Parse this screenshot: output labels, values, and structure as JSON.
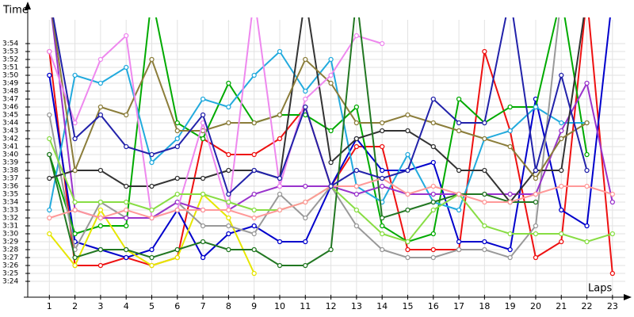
{
  "chart_data": {
    "type": "line",
    "y_label": "Time",
    "x_label": "Laps",
    "x": [
      1,
      2,
      3,
      4,
      5,
      6,
      7,
      8,
      9,
      10,
      11,
      12,
      13,
      14,
      15,
      16,
      17,
      18,
      19,
      20,
      21,
      22,
      23
    ],
    "xlim": [
      0,
      23.5
    ],
    "xticks": [
      1,
      2,
      3,
      4,
      5,
      6,
      7,
      8,
      9,
      10,
      11,
      12,
      13,
      14,
      15,
      16,
      17,
      18,
      19,
      20,
      21,
      22,
      23
    ],
    "ylim": [
      202,
      237
    ],
    "yticks": [
      {
        "value": 204,
        "label": "3:24"
      },
      {
        "value": 205,
        "label": "3:25"
      },
      {
        "value": 206,
        "label": "3:26"
      },
      {
        "value": 207,
        "label": "3:27"
      },
      {
        "value": 208,
        "label": "3:28"
      },
      {
        "value": 209,
        "label": "3:29"
      },
      {
        "value": 210,
        "label": "3:30"
      },
      {
        "value": 211,
        "label": "3:31"
      },
      {
        "value": 212,
        "label": "3:32"
      },
      {
        "value": 213,
        "label": "3:33"
      },
      {
        "value": 214,
        "label": "3:34"
      },
      {
        "value": 215,
        "label": "3:35"
      },
      {
        "value": 216,
        "label": "3:36"
      },
      {
        "value": 217,
        "label": "3:37"
      },
      {
        "value": 218,
        "label": "3:38"
      },
      {
        "value": 219,
        "label": "3:39"
      },
      {
        "value": 220,
        "label": "3:40"
      },
      {
        "value": 221,
        "label": "3:41"
      },
      {
        "value": 222,
        "label": "3:42"
      },
      {
        "value": 223,
        "label": "3:43"
      },
      {
        "value": 224,
        "label": "3:44"
      },
      {
        "value": 225,
        "label": "3:45"
      },
      {
        "value": 226,
        "label": "3:46"
      },
      {
        "value": 227,
        "label": "3:47"
      },
      {
        "value": 228,
        "label": "3:48"
      },
      {
        "value": 229,
        "label": "3:49"
      },
      {
        "value": 230,
        "label": "3:50"
      },
      {
        "value": 231,
        "label": "3:51"
      },
      {
        "value": 232,
        "label": "3:52"
      },
      {
        "value": 233,
        "label": "3:53"
      },
      {
        "value": 234,
        "label": "3:54"
      }
    ],
    "grid": true,
    "series": [
      {
        "color": "#ee1111",
        "values": [
          233,
          206,
          206,
          207,
          206,
          207,
          222,
          220,
          220,
          222,
          226,
          216,
          221,
          221,
          208,
          208,
          208,
          233,
          223,
          207,
          209,
          240,
          205
        ]
      },
      {
        "color": "#0000cc",
        "values": [
          230,
          209,
          208,
          207,
          208,
          213,
          207,
          210,
          211,
          209,
          209,
          216,
          222,
          218,
          218,
          219,
          209,
          209,
          208,
          227,
          213,
          211,
          240
        ]
      },
      {
        "color": "#00aa00",
        "values": [
          220,
          210,
          211,
          211,
          240,
          224,
          222,
          229,
          224,
          225,
          225,
          223,
          226,
          211,
          209,
          210,
          227,
          224,
          226,
          226,
          240,
          220,
          null
        ]
      },
      {
        "color": "#e6e600",
        "values": [
          210,
          206,
          213,
          208,
          206,
          207,
          215,
          212,
          205,
          null,
          null,
          null,
          null,
          null,
          null,
          null,
          null,
          null,
          null,
          null,
          null,
          null,
          null
        ]
      },
      {
        "color": "#22aadd",
        "values": [
          213,
          230,
          229,
          231,
          219,
          222,
          227,
          226,
          230,
          233,
          228,
          232,
          216,
          214,
          220,
          214,
          213,
          222,
          223,
          226,
          224,
          224,
          null
        ]
      },
      {
        "color": "#999999",
        "values": [
          225,
          208,
          214,
          212,
          212,
          214,
          211,
          211,
          210,
          215,
          212,
          216,
          211,
          208,
          207,
          207,
          208,
          208,
          207,
          211,
          240,
          null,
          null
        ]
      },
      {
        "color": "#9933cc",
        "values": [
          240,
          213,
          212,
          212,
          212,
          214,
          213,
          213,
          215,
          216,
          216,
          216,
          215,
          216,
          215,
          215,
          215,
          215,
          215,
          215,
          223,
          229,
          214
        ]
      },
      {
        "color": "#333333",
        "values": [
          217,
          218,
          218,
          216,
          216,
          217,
          217,
          218,
          218,
          217,
          240,
          219,
          222,
          223,
          223,
          221,
          218,
          218,
          214,
          218,
          218,
          240,
          null
        ]
      },
      {
        "color": "#8b7d3a",
        "values": [
          240,
          218,
          226,
          225,
          232,
          223,
          223,
          224,
          224,
          225,
          232,
          229,
          224,
          224,
          225,
          224,
          223,
          222,
          221,
          217,
          222,
          224,
          null
        ]
      },
      {
        "color": "#ee88ee",
        "values": [
          233,
          224,
          232,
          235,
          212,
          213,
          224,
          213,
          240,
          216,
          227,
          230,
          235,
          234,
          null,
          null,
          null,
          null,
          null,
          null,
          null,
          null,
          null
        ]
      },
      {
        "color": "#227722",
        "values": [
          220,
          207,
          208,
          208,
          207,
          208,
          209,
          208,
          208,
          206,
          206,
          208,
          240,
          212,
          213,
          214,
          215,
          215,
          214,
          214,
          null,
          null,
          null
        ]
      },
      {
        "color": "#88dd44",
        "values": [
          222,
          214,
          214,
          214,
          213,
          215,
          215,
          214,
          213,
          213,
          214,
          216,
          213,
          210,
          209,
          213,
          215,
          211,
          210,
          210,
          210,
          209,
          210
        ]
      },
      {
        "color": "#ff9999",
        "values": [
          212,
          213,
          212,
          213,
          212,
          213,
          213,
          213,
          212,
          213,
          214,
          216,
          216,
          217,
          215,
          216,
          215,
          214,
          214,
          215,
          216,
          216,
          215
        ]
      },
      {
        "color": "#2222aa",
        "values": [
          240,
          222,
          225,
          221,
          220,
          221,
          225,
          215,
          218,
          217,
          226,
          216,
          218,
          217,
          218,
          227,
          224,
          224,
          240,
          218,
          230,
          218,
          null
        ]
      }
    ]
  }
}
